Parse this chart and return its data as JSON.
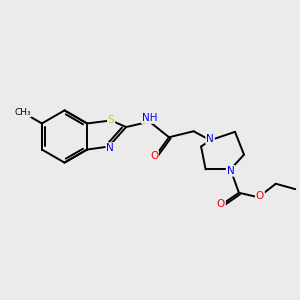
{
  "bg_color": "#ebebeb",
  "bond_color": "#000000",
  "atom_colors": {
    "S": "#cccc00",
    "N": "#0000ff",
    "O": "#ff0000",
    "C": "#000000",
    "H": "#777777"
  },
  "bond_width": 1.4,
  "figsize": [
    3.0,
    3.0
  ],
  "dpi": 100
}
